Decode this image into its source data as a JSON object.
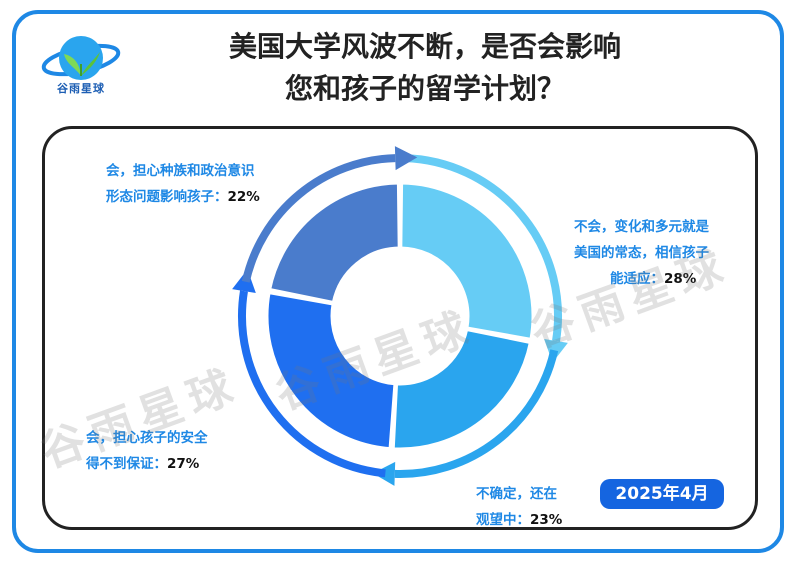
{
  "header": {
    "title_line1": "美国大学风波不断，是否会影响",
    "title_line2": "您和孩子的留学计划？",
    "logo_text": "谷雨星球"
  },
  "date_badge": "2025年4月",
  "watermark": "谷雨星球",
  "chart_data": {
    "type": "pie",
    "donut": true,
    "slices": [
      {
        "label_line1": "不会，变化和多元就是",
        "label_line2": "美国的常态，相信孩子",
        "label_line3": "能适应：",
        "value": 28,
        "display": "28%",
        "color": "#66ccf5"
      },
      {
        "label_line1": "不确定，还在",
        "label_line2": "观望中：",
        "value": 23,
        "display": "23%",
        "color": "#2aa5ee"
      },
      {
        "label_line1": "会，担心孩子的安全",
        "label_line2": "得不到保证：",
        "value": 27,
        "display": "27%",
        "color": "#1f6ff0"
      },
      {
        "label_line1": "会，担心种族和政治意识",
        "label_line2": "形态问题影响孩子：",
        "value": 22,
        "display": "22%",
        "color": "#4a7ccc"
      }
    ]
  }
}
